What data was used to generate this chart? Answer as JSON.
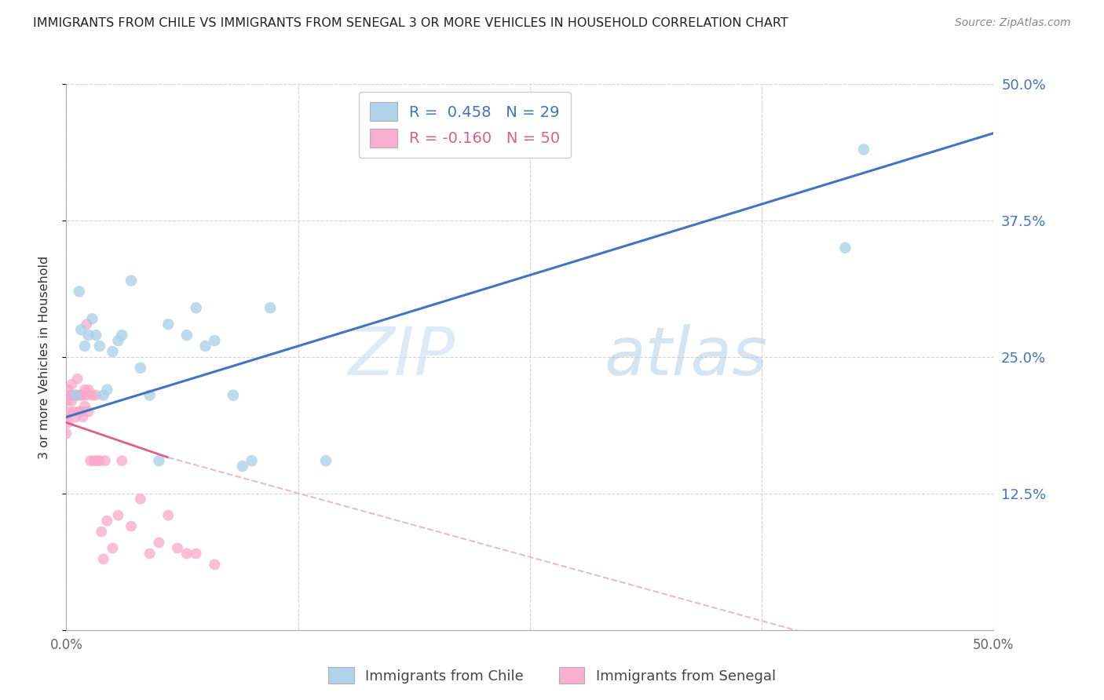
{
  "title": "IMMIGRANTS FROM CHILE VS IMMIGRANTS FROM SENEGAL 3 OR MORE VEHICLES IN HOUSEHOLD CORRELATION CHART",
  "source": "Source: ZipAtlas.com",
  "ylabel": "3 or more Vehicles in Household",
  "xmin": 0.0,
  "xmax": 0.5,
  "ymin": 0.0,
  "ymax": 0.5,
  "yticks": [
    0.0,
    0.125,
    0.25,
    0.375,
    0.5
  ],
  "ytick_labels": [
    "",
    "12.5%",
    "25.0%",
    "37.5%",
    "50.0%"
  ],
  "xticks": [
    0.0,
    0.125,
    0.25,
    0.375,
    0.5
  ],
  "xtick_labels": [
    "0.0%",
    "",
    "",
    "",
    "50.0%"
  ],
  "legend_chile_R": "0.458",
  "legend_chile_N": "29",
  "legend_senegal_R": "-0.160",
  "legend_senegal_N": "50",
  "chile_color": "#a8cfe8",
  "senegal_color": "#f9a8c9",
  "trendline_chile_color": "#4472c4",
  "trendline_senegal_color": "#e05c8a",
  "trendline_senegal_dashed_color": "#f0b8d0",
  "watermark_zip": "ZIP",
  "watermark_atlas": "atlas",
  "background_color": "#ffffff",
  "grid_color": "#d0d0d0",
  "axis_label_color": "#4472c4",
  "chile_points_x": [
    0.005,
    0.007,
    0.008,
    0.01,
    0.012,
    0.014,
    0.016,
    0.018,
    0.02,
    0.022,
    0.025,
    0.028,
    0.03,
    0.035,
    0.04,
    0.045,
    0.05,
    0.055,
    0.065,
    0.07,
    0.075,
    0.08,
    0.09,
    0.095,
    0.1,
    0.11,
    0.14,
    0.42,
    0.43
  ],
  "chile_points_y": [
    0.215,
    0.31,
    0.275,
    0.26,
    0.27,
    0.285,
    0.27,
    0.26,
    0.215,
    0.22,
    0.255,
    0.265,
    0.27,
    0.32,
    0.24,
    0.215,
    0.155,
    0.28,
    0.27,
    0.295,
    0.26,
    0.265,
    0.215,
    0.15,
    0.155,
    0.295,
    0.155,
    0.35,
    0.44
  ],
  "senegal_points_x": [
    0.0,
    0.0,
    0.0,
    0.001,
    0.001,
    0.001,
    0.002,
    0.002,
    0.003,
    0.003,
    0.004,
    0.004,
    0.005,
    0.005,
    0.006,
    0.006,
    0.007,
    0.007,
    0.008,
    0.008,
    0.009,
    0.009,
    0.01,
    0.01,
    0.011,
    0.011,
    0.012,
    0.012,
    0.013,
    0.014,
    0.015,
    0.016,
    0.017,
    0.018,
    0.019,
    0.02,
    0.021,
    0.022,
    0.025,
    0.028,
    0.03,
    0.035,
    0.04,
    0.045,
    0.05,
    0.055,
    0.06,
    0.065,
    0.07,
    0.08
  ],
  "senegal_points_y": [
    0.215,
    0.195,
    0.18,
    0.22,
    0.21,
    0.19,
    0.215,
    0.2,
    0.225,
    0.21,
    0.215,
    0.2,
    0.215,
    0.195,
    0.23,
    0.215,
    0.215,
    0.2,
    0.215,
    0.2,
    0.215,
    0.195,
    0.22,
    0.205,
    0.28,
    0.215,
    0.22,
    0.2,
    0.155,
    0.215,
    0.155,
    0.215,
    0.155,
    0.155,
    0.09,
    0.065,
    0.155,
    0.1,
    0.075,
    0.105,
    0.155,
    0.095,
    0.12,
    0.07,
    0.08,
    0.105,
    0.075,
    0.07,
    0.07,
    0.06
  ]
}
